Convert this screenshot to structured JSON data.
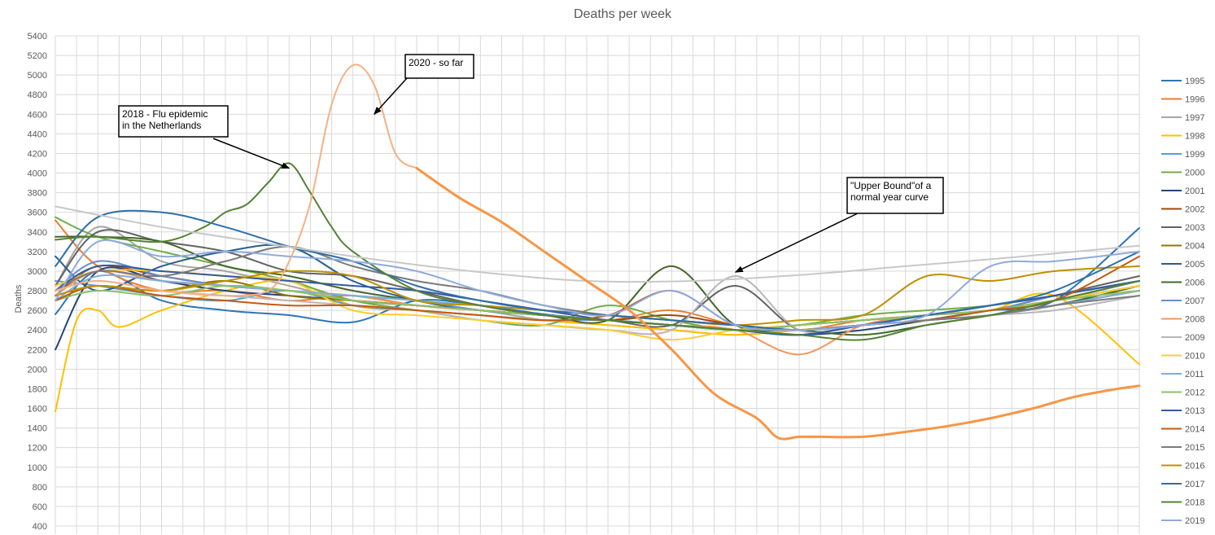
{
  "colors": {
    "background": "#ffffff",
    "grid": "#d9d9d9",
    "text": "#595959",
    "annotation_border": "#000000"
  },
  "chart_data": {
    "type": "line",
    "title": "Deaths per week",
    "ylabel": "Deaths",
    "xlabel": "",
    "xlim": [
      1,
      52
    ],
    "ylim": [
      400,
      5400
    ],
    "y_ticks": [
      "400",
      "600",
      "800",
      "1000",
      "1200",
      "1400",
      "1600",
      "1800",
      "2000",
      "2200",
      "2400",
      "2600",
      "2800",
      "3000",
      "3200",
      "3400",
      "3600",
      "3800",
      "4000",
      "4200",
      "4400",
      "4600",
      "4800",
      "5000",
      "5200",
      "5400"
    ],
    "grid": true,
    "legend_position": "right",
    "series": [
      {
        "name": "1995",
        "color": "#2e75b6",
        "x": [
          1,
          3,
          6,
          9,
          12,
          15,
          18,
          21,
          24,
          27,
          30,
          33,
          36,
          39,
          42,
          45,
          48,
          52
        ],
        "y": [
          2560,
          3000,
          2700,
          2600,
          2550,
          2480,
          2700,
          2650,
          2560,
          2500,
          2450,
          2400,
          2450,
          2500,
          2550,
          2600,
          2700,
          3440
        ]
      },
      {
        "name": "1996",
        "color": "#ed7d31",
        "x": [
          1,
          3,
          6,
          9,
          12,
          15,
          18,
          21,
          24,
          27,
          30,
          33,
          36,
          39,
          42,
          45,
          48,
          52
        ],
        "y": [
          3520,
          3050,
          2800,
          2800,
          2700,
          2750,
          2650,
          2600,
          2550,
          2500,
          2600,
          2450,
          2400,
          2500,
          2550,
          2600,
          2700,
          2800
        ]
      },
      {
        "name": "1997",
        "color": "#a5a5a5",
        "x": [
          1,
          3,
          6,
          9,
          12,
          15,
          18,
          21,
          24,
          27,
          30,
          33,
          36,
          39,
          42,
          45,
          48,
          52
        ],
        "y": [
          2850,
          3450,
          3100,
          3000,
          2850,
          2700,
          2650,
          2600,
          2500,
          2450,
          2400,
          2350,
          2400,
          2450,
          2500,
          2550,
          2650,
          2850
        ]
      },
      {
        "name": "1998",
        "color": "#ffc000",
        "x": [
          1,
          2,
          3,
          4,
          6,
          9,
          12,
          15,
          18,
          21,
          24,
          27,
          30,
          33,
          36,
          39,
          42,
          45,
          48,
          52
        ],
        "y": [
          1570,
          2500,
          2600,
          2430,
          2600,
          2800,
          2900,
          2650,
          2600,
          2550,
          2500,
          2450,
          2400,
          2350,
          2400,
          2450,
          2550,
          2600,
          2750,
          2050
        ]
      },
      {
        "name": "1999",
        "color": "#5b9bd5",
        "x": [
          1,
          3,
          6,
          9,
          12,
          15,
          18,
          21,
          24,
          27,
          30,
          33,
          36,
          39,
          42,
          45,
          48,
          52
        ],
        "y": [
          2900,
          2850,
          2750,
          2700,
          2800,
          2650,
          2600,
          2550,
          2500,
          2500,
          2450,
          2400,
          2450,
          2500,
          2550,
          2600,
          2700,
          2900
        ]
      },
      {
        "name": "2000",
        "color": "#70ad47",
        "x": [
          1,
          3,
          6,
          9,
          12,
          15,
          18,
          21,
          24,
          27,
          30,
          33,
          36,
          39,
          42,
          45,
          48,
          52
        ],
        "y": [
          3550,
          3350,
          3200,
          3050,
          2900,
          2700,
          2600,
          2500,
          2450,
          2650,
          2500,
          2400,
          2450,
          2550,
          2600,
          2650,
          2750,
          2900
        ]
      },
      {
        "name": "2001",
        "color": "#264478",
        "x": [
          1,
          3,
          6,
          9,
          12,
          15,
          18,
          21,
          24,
          27,
          30,
          33,
          36,
          39,
          42,
          45,
          48,
          52
        ],
        "y": [
          2200,
          3000,
          2900,
          2800,
          2750,
          2700,
          2650,
          2600,
          2550,
          2500,
          2450,
          2400,
          2350,
          2400,
          2500,
          2600,
          2700,
          2850
        ]
      },
      {
        "name": "2002",
        "color": "#9e480e",
        "x": [
          1,
          3,
          6,
          9,
          12,
          15,
          18,
          21,
          24,
          27,
          30,
          33,
          36,
          39,
          42,
          45,
          48,
          52
        ],
        "y": [
          2750,
          3050,
          2950,
          2850,
          2800,
          2700,
          2650,
          2600,
          2550,
          2500,
          2550,
          2450,
          2400,
          2450,
          2500,
          2550,
          2650,
          2800
        ]
      },
      {
        "name": "2003",
        "color": "#636363",
        "x": [
          1,
          3,
          6,
          9,
          12,
          15,
          18,
          21,
          24,
          27,
          30,
          33,
          36,
          39,
          42,
          45,
          48,
          52
        ],
        "y": [
          2850,
          3400,
          3300,
          3200,
          3000,
          2950,
          2800,
          2650,
          2550,
          2500,
          2450,
          2850,
          2400,
          2450,
          2550,
          2600,
          2750,
          2950
        ]
      },
      {
        "name": "2004",
        "color": "#997300",
        "x": [
          1,
          3,
          6,
          9,
          12,
          15,
          18,
          21,
          24,
          27,
          30,
          33,
          36,
          39,
          42,
          45,
          48,
          52
        ],
        "y": [
          2750,
          2850,
          2800,
          2900,
          2750,
          2700,
          2650,
          2600,
          2550,
          2500,
          2450,
          2400,
          2450,
          2500,
          2550,
          2650,
          2750,
          2900
        ]
      },
      {
        "name": "2005",
        "color": "#255e91",
        "x": [
          1,
          3,
          6,
          9,
          12,
          15,
          18,
          21,
          24,
          27,
          30,
          33,
          36,
          39,
          42,
          45,
          48,
          52
        ],
        "y": [
          3150,
          2800,
          3050,
          3200,
          3250,
          2900,
          2700,
          2600,
          2550,
          2500,
          2450,
          2400,
          2350,
          2450,
          2550,
          2650,
          2750,
          2900
        ]
      },
      {
        "name": "2006",
        "color": "#43682b",
        "x": [
          1,
          3,
          6,
          9,
          12,
          15,
          18,
          21,
          24,
          27,
          30,
          33,
          36,
          39,
          42,
          45,
          48,
          52
        ],
        "y": [
          3350,
          3350,
          3300,
          3050,
          2950,
          2800,
          2700,
          2600,
          2550,
          2500,
          3050,
          2450,
          2400,
          2350,
          2450,
          2550,
          2650,
          2850
        ]
      },
      {
        "name": "2007",
        "color": "#698ed0",
        "x": [
          1,
          3,
          6,
          9,
          12,
          15,
          18,
          21,
          24,
          27,
          30,
          33,
          36,
          39,
          42,
          45,
          48,
          52
        ],
        "y": [
          2800,
          3100,
          2950,
          2850,
          2800,
          2750,
          2700,
          2600,
          2550,
          2500,
          2450,
          2400,
          2450,
          2500,
          2550,
          2600,
          2750,
          2900
        ]
      },
      {
        "name": "2008",
        "color": "#f1975a",
        "x": [
          1,
          3,
          6,
          9,
          12,
          15,
          18,
          21,
          24,
          27,
          30,
          33,
          36,
          39,
          42,
          45,
          48,
          52
        ],
        "y": [
          2750,
          3000,
          2900,
          2850,
          2800,
          2750,
          2650,
          2600,
          2550,
          2500,
          2450,
          2400,
          2150,
          2450,
          2550,
          2600,
          2700,
          2850
        ]
      },
      {
        "name": "2009",
        "color": "#b7b7b7",
        "x": [
          1,
          3,
          6,
          9,
          12,
          15,
          18,
          21,
          24,
          27,
          30,
          33,
          36,
          39,
          42,
          45,
          48,
          52
        ],
        "y": [
          2800,
          2900,
          2800,
          2750,
          2700,
          2650,
          2600,
          2500,
          2450,
          2400,
          2400,
          2950,
          2400,
          2450,
          2500,
          2550,
          2600,
          2750
        ]
      },
      {
        "name": "2010",
        "color": "#ffcd33",
        "x": [
          1,
          3,
          6,
          9,
          12,
          15,
          18,
          21,
          24,
          27,
          30,
          33,
          36,
          39,
          42,
          45,
          48,
          52
        ],
        "y": [
          2850,
          3000,
          3000,
          2950,
          2900,
          2600,
          2550,
          2500,
          2450,
          2400,
          2300,
          2400,
          2450,
          2500,
          2550,
          2600,
          2700,
          2850
        ]
      },
      {
        "name": "2011",
        "color": "#7cafdd",
        "x": [
          1,
          3,
          6,
          9,
          12,
          15,
          18,
          21,
          24,
          27,
          30,
          33,
          36,
          39,
          42,
          45,
          48,
          52
        ],
        "y": [
          2700,
          2950,
          2900,
          2850,
          2800,
          2750,
          2700,
          2650,
          2600,
          2550,
          2500,
          2450,
          2400,
          2450,
          2500,
          2550,
          2650,
          2800
        ]
      },
      {
        "name": "2012",
        "color": "#8cc168",
        "x": [
          1,
          3,
          6,
          9,
          12,
          15,
          18,
          21,
          24,
          27,
          30,
          33,
          36,
          39,
          42,
          45,
          48,
          52
        ],
        "y": [
          2700,
          2800,
          2750,
          2850,
          2800,
          2700,
          2650,
          2600,
          2550,
          2500,
          2450,
          2400,
          2450,
          2500,
          2550,
          2600,
          2700,
          2800
        ]
      },
      {
        "name": "2013",
        "color": "#335aa1",
        "x": [
          1,
          3,
          6,
          9,
          12,
          15,
          18,
          21,
          24,
          27,
          30,
          33,
          36,
          39,
          42,
          45,
          48,
          52
        ],
        "y": [
          2800,
          3050,
          3000,
          2950,
          2900,
          2850,
          2800,
          2700,
          2600,
          2500,
          2450,
          2400,
          2350,
          2450,
          2550,
          2650,
          2750,
          2900
        ]
      },
      {
        "name": "2014",
        "color": "#c65911",
        "x": [
          1,
          3,
          6,
          9,
          12,
          15,
          18,
          21,
          24,
          27,
          30,
          33,
          36,
          39,
          42,
          45,
          48,
          52
        ],
        "y": [
          2700,
          2850,
          2750,
          2700,
          2650,
          2650,
          2600,
          2550,
          2500,
          2550,
          2800,
          2450,
          2400,
          2450,
          2500,
          2600,
          2700,
          3150
        ]
      },
      {
        "name": "2015",
        "color": "#7b7b7b",
        "x": [
          1,
          3,
          6,
          9,
          12,
          15,
          18,
          21,
          24,
          27,
          30,
          33,
          36,
          39,
          42,
          45,
          48,
          52
        ],
        "y": [
          2800,
          3000,
          2950,
          3100,
          3250,
          3050,
          2900,
          2800,
          2650,
          2550,
          2500,
          2450,
          2400,
          2450,
          2500,
          2550,
          2650,
          2750
        ]
      },
      {
        "name": "2016",
        "color": "#bf9000",
        "x": [
          1,
          3,
          6,
          9,
          12,
          15,
          18,
          21,
          24,
          27,
          30,
          33,
          36,
          39,
          42,
          45,
          48,
          52
        ],
        "y": [
          2750,
          2850,
          2800,
          2900,
          3000,
          2950,
          2700,
          2650,
          2600,
          2550,
          2500,
          2450,
          2500,
          2550,
          2950,
          2900,
          3000,
          3050
        ]
      },
      {
        "name": "2017",
        "color": "#2f6ea8",
        "x": [
          1,
          3,
          6,
          9,
          12,
          15,
          18,
          21,
          24,
          27,
          30,
          33,
          36,
          39,
          42,
          45,
          48,
          52
        ],
        "y": [
          3050,
          3550,
          3600,
          3450,
          3250,
          3100,
          2850,
          2700,
          2600,
          2550,
          2500,
          2450,
          2400,
          2450,
          2550,
          2650,
          2800,
          3200
        ]
      },
      {
        "name": "2018",
        "color": "#548235",
        "x": [
          1,
          3,
          6,
          8,
          9,
          10,
          11,
          12,
          13,
          14,
          15,
          18,
          21,
          24,
          27,
          30,
          33,
          36,
          39,
          42,
          45,
          48,
          52
        ],
        "y": [
          3320,
          3350,
          3300,
          3450,
          3600,
          3680,
          3900,
          4100,
          3800,
          3450,
          3200,
          2800,
          2650,
          2550,
          2500,
          2450,
          2400,
          2350,
          2300,
          2450,
          2550,
          2700,
          2900
        ]
      },
      {
        "name": "2019",
        "color": "#8faadc",
        "x": [
          1,
          3,
          6,
          9,
          12,
          15,
          18,
          21,
          24,
          27,
          30,
          33,
          36,
          39,
          42,
          45,
          48,
          52
        ],
        "y": [
          2700,
          3300,
          3150,
          3200,
          3150,
          3100,
          3000,
          2800,
          2650,
          2550,
          2800,
          2450,
          2400,
          2450,
          2550,
          3050,
          3100,
          3200
        ]
      },
      {
        "name": "",
        "role": "upper-bound",
        "color": "#c8c8c8",
        "x": [
          1,
          6,
          11,
          16,
          21,
          26,
          31,
          36,
          41,
          46,
          52
        ],
        "y": [
          3660,
          3450,
          3280,
          3120,
          2990,
          2900,
          2900,
          2960,
          3050,
          3140,
          3260
        ]
      },
      {
        "name": "",
        "role": "2020",
        "color": "#f4b183",
        "x": [
          1,
          3,
          6,
          9,
          11,
          12,
          13,
          14,
          15,
          16,
          17,
          18
        ],
        "y": [
          2800,
          2900,
          2800,
          2750,
          2800,
          3100,
          3700,
          4700,
          5100,
          4900,
          4200,
          4050
        ]
      },
      {
        "name": "",
        "role": "2020-projection",
        "color": "#f79646",
        "x": [
          18,
          20,
          22,
          24,
          26,
          28,
          30,
          32,
          34,
          35,
          36,
          37,
          39,
          41,
          43,
          45,
          47,
          49,
          51,
          52
        ],
        "y": [
          4050,
          3750,
          3500,
          3200,
          2900,
          2600,
          2200,
          1750,
          1500,
          1300,
          1310,
          1310,
          1310,
          1360,
          1420,
          1500,
          1600,
          1720,
          1800,
          1830
        ]
      }
    ],
    "annotations": [
      {
        "id": "flu-2018",
        "lines": [
          "2018 - Flu epidemic",
          "in the Netherlands"
        ],
        "arrow_to": [
          12,
          4050
        ]
      },
      {
        "id": "2020-so-far",
        "lines": [
          "2020 - so far"
        ],
        "arrow_to": [
          16,
          4600
        ]
      },
      {
        "id": "upper-bound",
        "lines": [
          "\"Upper Bound\"of a",
          "normal year curve"
        ],
        "arrow_to": [
          33,
          2990
        ]
      }
    ]
  }
}
